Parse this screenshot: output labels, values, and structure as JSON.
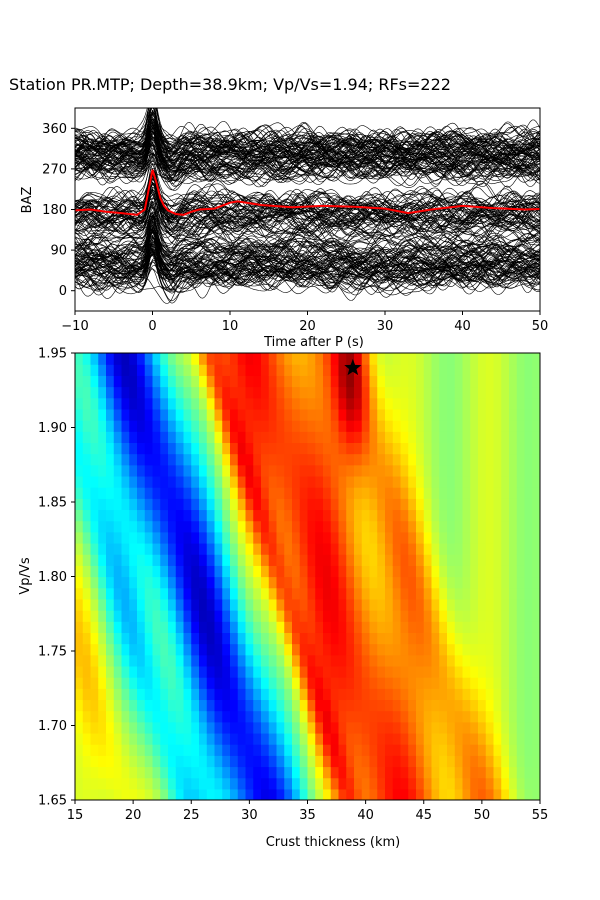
{
  "title": "Station PR.MTP; Depth=38.9km; Vp/Vs=1.94; RFs=222",
  "colors": {
    "traces": "#000000",
    "mean_trace": "#ff0000",
    "marker": "#000000",
    "colormap": "jet"
  },
  "chart_data": [
    {
      "type": "line",
      "panel": "receiver-functions-by-baz",
      "xlabel": "Time after P (s)",
      "ylabel": "BAZ",
      "xlim": [
        -10,
        50
      ],
      "ylim": [
        -45,
        405
      ],
      "xticks": [
        -10,
        0,
        10,
        20,
        30,
        40,
        50
      ],
      "yticks": [
        0,
        90,
        180,
        270,
        360
      ],
      "trace_count": 222,
      "baz_bands": [
        {
          "baz_center": 300,
          "spread": 40
        },
        {
          "baz_center": 180,
          "spread": 25
        },
        {
          "baz_center": 100,
          "spread": 60
        },
        {
          "baz_center": 40,
          "spread": 25
        }
      ],
      "mean_trace": {
        "color": "red",
        "x": [
          -10,
          -8,
          -6,
          -4,
          -2,
          -1,
          0,
          0.5,
          1,
          1.5,
          2,
          3,
          4,
          5,
          6,
          8,
          10,
          11,
          14,
          18,
          22,
          26,
          30,
          33,
          36,
          40,
          44,
          48,
          50
        ],
        "y": [
          178,
          180,
          175,
          172,
          168,
          180,
          268,
          240,
          205,
          188,
          178,
          170,
          168,
          175,
          180,
          182,
          195,
          198,
          190,
          185,
          188,
          186,
          182,
          172,
          180,
          188,
          183,
          180,
          181
        ]
      }
    },
    {
      "type": "heatmap",
      "panel": "h-k-stack",
      "xlabel": "Crust thickness (km)",
      "ylabel": "Vp/Vs",
      "xlim": [
        15,
        55
      ],
      "ylim": [
        1.65,
        1.95
      ],
      "xticks": [
        15,
        20,
        25,
        30,
        35,
        40,
        45,
        50,
        55
      ],
      "yticks": [
        1.65,
        1.7,
        1.75,
        1.8,
        1.85,
        1.9,
        1.95
      ],
      "best_fit": {
        "crust_thickness_km": 38.9,
        "vp_vs": 1.94,
        "marker": "star"
      }
    }
  ]
}
